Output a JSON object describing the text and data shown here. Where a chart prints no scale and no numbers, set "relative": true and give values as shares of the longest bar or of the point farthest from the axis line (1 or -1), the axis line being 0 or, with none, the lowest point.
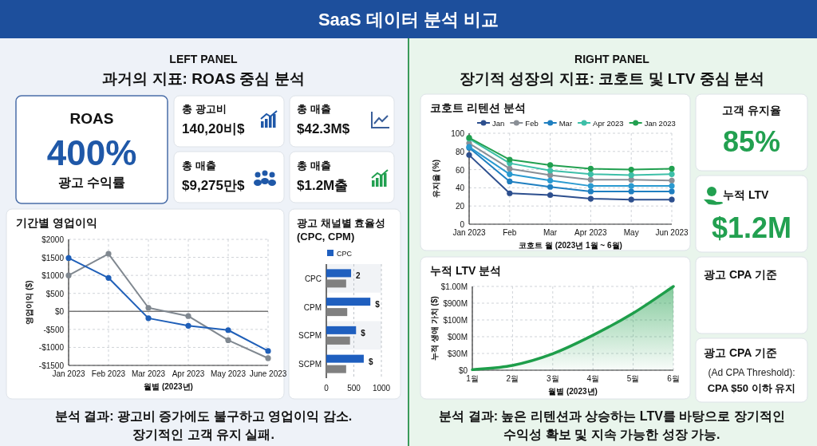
{
  "chart_data": [
    {
      "type": "other",
      "title": "SaaS 데이터 분석 비교",
      "annotations": [
        "LEFT PANEL",
        "과거의 지표: ROAS 중심 분석",
        "ROAS",
        "400%",
        "광고 수익률",
        "총 광고비",
        "140,20비$",
        "총 매출",
        "$42.3M$",
        "총 매출",
        "$9,275만$",
        "총 매출",
        "$1.2M출",
        "분석 결과: 광고비 증가에도 불구하고 영업이익 감소.",
        "장기적인 고객 유지 실패."
      ]
    },
    {
      "type": "line",
      "title": "기간별 영업이익",
      "xlabel": "월별 (2023년)",
      "ylabel": "영업이익 ($)",
      "categories": [
        "Jan 2023",
        "Feb 2023",
        "Mar 2023",
        "Apr 2023",
        "May 2023",
        "June 2023"
      ],
      "series": [
        {
          "color": "#808890",
          "values": [
            1000,
            1600,
            100,
            -130,
            -800,
            -1300
          ]
        },
        {
          "color": "#1f5fb8",
          "values": [
            1480,
            930,
            -190,
            -400,
            -520,
            -1100
          ]
        }
      ],
      "ylim": [
        -1500,
        2000
      ],
      "yticks": [
        {
          "value": -1500,
          "label": "-$1500"
        },
        {
          "value": -1000,
          "label": "-$1000"
        },
        {
          "value": -500,
          "label": "-$500"
        },
        {
          "value": 0,
          "label": "$0"
        },
        {
          "value": 500,
          "label": "$500"
        },
        {
          "value": 1000,
          "label": "$1000"
        },
        {
          "value": 1500,
          "label": "$1500"
        },
        {
          "value": 2000,
          "label": "$2000"
        }
      ],
      "ref_lines": [
        {
          "axis": "y",
          "value": 0,
          "color": "#777777"
        }
      ],
      "grid": true,
      "marker": "circle",
      "legend": false
    },
    {
      "type": "bar",
      "orientation": "horizontal",
      "title": "광고 채널별 효율성 (CPC, CPM)",
      "categories": [
        "CPC",
        "CPM",
        "SCPM",
        "SCPM"
      ],
      "series": [
        {
          "name": "CPC",
          "color": "#1f5fbf",
          "values": [
            450,
            800,
            540,
            680
          ]
        },
        {
          "color": "#808080",
          "values": [
            360,
            380,
            430,
            360
          ]
        }
      ],
      "xlim": [
        0,
        1000
      ],
      "xticks": [
        0,
        500,
        1000
      ],
      "grid": "x",
      "legend": "top",
      "annotations": [
        "2",
        "$",
        "$",
        "$"
      ]
    },
    {
      "type": "other",
      "annotations": [
        "RIGHT PANEL",
        "장기적 성장의 지표: 코호트 및 LTV 중심 분석"
      ]
    },
    {
      "type": "line",
      "title": "코호트 리텐션 분석",
      "xlabel": "코호트 월 (2023년 1월 ~ 6월)",
      "ylabel": "유지율 (%)",
      "categories": [
        "Jan 2023",
        "Feb",
        "Mar",
        "Apr 2023",
        "May",
        "Jun 2023"
      ],
      "series": [
        {
          "name": "Jan",
          "color": "#2d4f8e",
          "values": [
            76,
            34,
            32,
            28,
            27,
            27
          ]
        },
        {
          "name": "Feb",
          "color": "#8a8f96",
          "values": [
            89,
            61,
            54,
            49,
            49,
            48
          ]
        },
        {
          "name": "Mar",
          "color": "#1f7fc0",
          "values": [
            84,
            47,
            41,
            36,
            36,
            36
          ]
        },
        {
          "name": "Apr 2023",
          "color": "#3dbfa8",
          "values": [
            94,
            67,
            59,
            55,
            54,
            55
          ]
        },
        {
          "name": "Jan 2023",
          "color": "#22a050",
          "values": [
            95,
            71,
            65,
            61,
            60,
            61
          ]
        },
        {
          "color": "#2a9ad0",
          "values": [
            85,
            55,
            48,
            42,
            42,
            42
          ]
        }
      ],
      "ylim": [
        0,
        100
      ],
      "yticks": [
        0,
        20,
        40,
        60,
        80,
        100
      ],
      "grid": true,
      "marker": "circle",
      "legend": "top"
    },
    {
      "type": "area",
      "title": "누적 LTV 분석",
      "xlabel": "월별 (2023년)",
      "ylabel": "누적 생애 가치 ($)",
      "categories": [
        "1월",
        "2월",
        "3월",
        "4월",
        "5월",
        "6월"
      ],
      "series": [
        {
          "color": "#1e9e4a",
          "values": [
            0.006,
            0.058,
            0.197,
            0.418,
            0.681,
            1
          ]
        }
      ],
      "relative": true,
      "annotations": [
        "$0",
        "$30M",
        "$00M",
        "$100M",
        "$900M",
        "$1.00M"
      ],
      "grid": true
    },
    {
      "type": "other",
      "annotations": [
        "고객 유지율",
        "85%",
        "누적 LTV",
        "$1.2M",
        "광고 CPA 기준",
        "광고 CPA 기준",
        "(Ad CPA Threshold):",
        "CPA $50 이하 유지",
        "분석 결과: 높은 리텐션과 상승하는 LTV를 바탕으로 장기적인",
        "수익성 확보 및 지속 가능한 성장 가능."
      ]
    }
  ]
}
